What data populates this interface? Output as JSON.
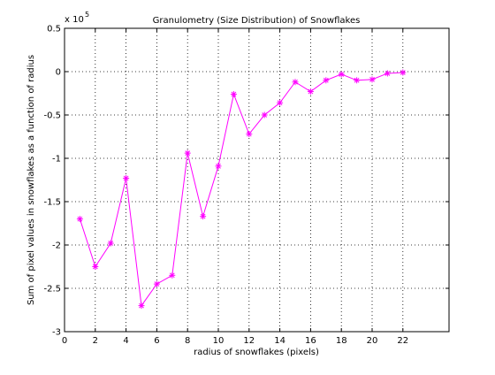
{
  "chart_data": {
    "type": "line",
    "title": "Granulometry (Size Distribution) of Snowflakes",
    "xlabel": "radius of snowflakes (pixels)",
    "ylabel": "Sum of pixel values in snowflakes as a function of radius",
    "y_exponent_label": "x 10",
    "y_exponent_power": "5",
    "xlim": [
      0,
      25
    ],
    "ylim": [
      -3,
      0.5
    ],
    "x_ticks": [
      0,
      2,
      4,
      6,
      8,
      10,
      12,
      14,
      16,
      18,
      20,
      22
    ],
    "x_tick_labels": [
      "0",
      "2",
      "4",
      "6",
      "8",
      "10",
      "12",
      "14",
      "16",
      "18",
      "20",
      "22"
    ],
    "y_ticks": [
      -3,
      -2.5,
      -2,
      -1.5,
      -1,
      -0.5,
      0,
      0.5
    ],
    "y_tick_labels": [
      "-3",
      "-2.5",
      "-2",
      "-1.5",
      "-1",
      "-0.5",
      "0",
      "0.5"
    ],
    "grid": true,
    "series": [
      {
        "color": "#ff00ff",
        "marker": "asterisk",
        "x": [
          1,
          2,
          3,
          4,
          5,
          6,
          7,
          8,
          9,
          10,
          11,
          12,
          13,
          14,
          15,
          16,
          17,
          18,
          19,
          20,
          21,
          22
        ],
        "y": [
          -1.7,
          -2.25,
          -1.98,
          -1.23,
          -2.7,
          -2.45,
          -2.35,
          -0.94,
          -1.67,
          -1.09,
          -0.26,
          -0.72,
          -0.5,
          -0.36,
          -0.12,
          -0.23,
          -0.1,
          -0.03,
          -0.1,
          -0.09,
          -0.02,
          -0.01
        ]
      }
    ]
  }
}
